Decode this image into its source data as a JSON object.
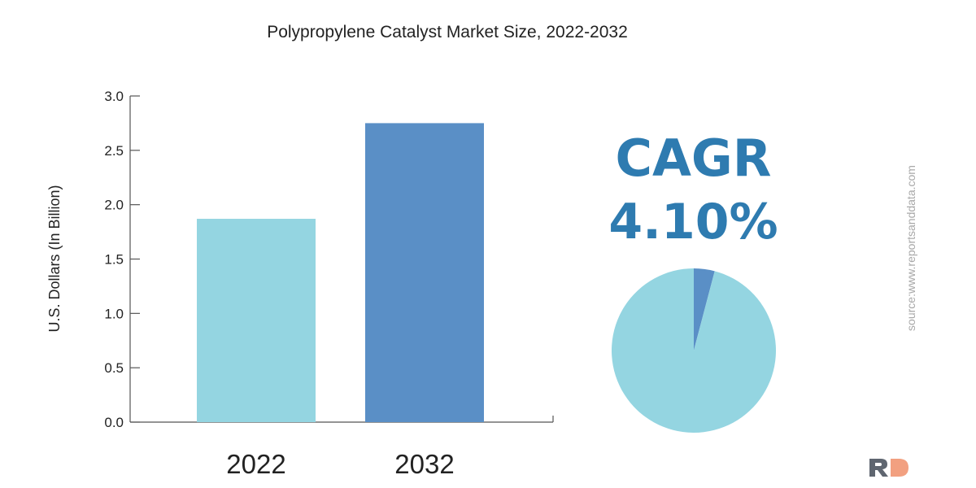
{
  "chart_data": [
    {
      "type": "bar",
      "title": "Polypropylene Catalyst Market Size, 2022-2032",
      "xlabel": "",
      "ylabel": "U.S. Dollars (In Billion)",
      "categories": [
        "2022",
        "2032"
      ],
      "values": [
        1.87,
        2.75
      ],
      "ylim": [
        0,
        3.0
      ],
      "yticks": [
        "0.0",
        "0.5",
        "1.0",
        "1.5",
        "2.0",
        "2.5",
        "3.0"
      ],
      "grid": false,
      "colors": [
        "#94d5e1",
        "#5a8fc6"
      ]
    },
    {
      "type": "pie",
      "values": [
        4.1,
        95.9
      ],
      "colors": [
        "#5a8fc6",
        "#94d5e1"
      ]
    }
  ],
  "cagr": {
    "label": "CAGR",
    "value": "4.10%",
    "color": "#2e7bb0"
  },
  "source": "source:www.reportsanddata.com",
  "logo": {
    "text": "RD",
    "colors": [
      "#5f6670",
      "#f2a080"
    ]
  }
}
